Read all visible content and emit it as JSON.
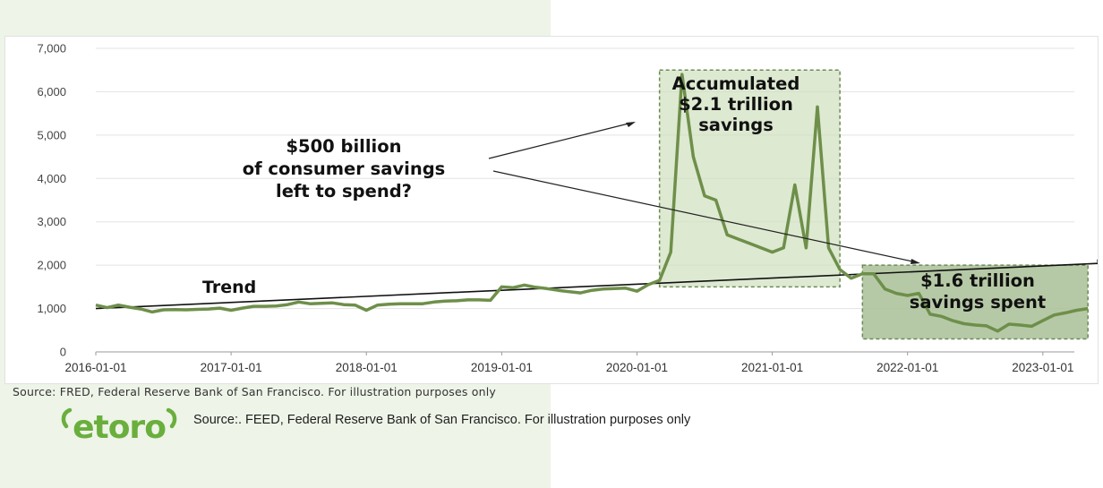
{
  "chart_data": {
    "type": "line",
    "title": "",
    "xlabel": "",
    "ylabel": "",
    "ylim": [
      0,
      7000
    ],
    "y_ticks": [
      0,
      1000,
      2000,
      3000,
      4000,
      5000,
      6000,
      7000
    ],
    "y_tick_labels": [
      "0",
      "1,000",
      "2,000",
      "3,000",
      "4,000",
      "5,000",
      "6,000",
      "7,000"
    ],
    "x_tick_labels": [
      "2016-01-01",
      "2017-01-01",
      "2018-01-01",
      "2019-01-01",
      "2020-01-01",
      "2021-01-01",
      "2022-01-01",
      "2023-01-01"
    ],
    "x_range": [
      "2016-01",
      "2023-03"
    ],
    "grid": "horizontal",
    "legend": "none",
    "series": [
      {
        "color": "#6e8f4a",
        "points": [
          [
            "2016-01",
            1080
          ],
          [
            "2016-02",
            1020
          ],
          [
            "2016-03",
            1080
          ],
          [
            "2016-04",
            1030
          ],
          [
            "2016-05",
            990
          ],
          [
            "2016-06",
            920
          ],
          [
            "2016-07",
            970
          ],
          [
            "2016-08",
            975
          ],
          [
            "2016-09",
            970
          ],
          [
            "2016-10",
            980
          ],
          [
            "2016-11",
            990
          ],
          [
            "2016-12",
            1010
          ],
          [
            "2017-01",
            960
          ],
          [
            "2017-02",
            1010
          ],
          [
            "2017-03",
            1050
          ],
          [
            "2017-04",
            1050
          ],
          [
            "2017-05",
            1060
          ],
          [
            "2017-06",
            1090
          ],
          [
            "2017-07",
            1150
          ],
          [
            "2017-08",
            1110
          ],
          [
            "2017-09",
            1120
          ],
          [
            "2017-10",
            1130
          ],
          [
            "2017-11",
            1090
          ],
          [
            "2017-12",
            1080
          ],
          [
            "2018-01",
            960
          ],
          [
            "2018-02",
            1080
          ],
          [
            "2018-03",
            1100
          ],
          [
            "2018-04",
            1110
          ],
          [
            "2018-05",
            1110
          ],
          [
            "2018-06",
            1110
          ],
          [
            "2018-07",
            1150
          ],
          [
            "2018-08",
            1170
          ],
          [
            "2018-09",
            1180
          ],
          [
            "2018-10",
            1200
          ],
          [
            "2018-11",
            1200
          ],
          [
            "2018-12",
            1190
          ],
          [
            "2019-01",
            1500
          ],
          [
            "2019-02",
            1480
          ],
          [
            "2019-03",
            1540
          ],
          [
            "2019-04",
            1490
          ],
          [
            "2019-05",
            1460
          ],
          [
            "2019-06",
            1420
          ],
          [
            "2019-07",
            1390
          ],
          [
            "2019-08",
            1360
          ],
          [
            "2019-09",
            1420
          ],
          [
            "2019-10",
            1450
          ],
          [
            "2019-11",
            1460
          ],
          [
            "2019-12",
            1470
          ],
          [
            "2020-01",
            1400
          ],
          [
            "2020-02",
            1550
          ],
          [
            "2020-03",
            1650
          ],
          [
            "2020-04",
            2300
          ],
          [
            "2020-05",
            6400
          ],
          [
            "2020-06",
            4500
          ],
          [
            "2020-07",
            3600
          ],
          [
            "2020-08",
            3500
          ],
          [
            "2020-09",
            2700
          ],
          [
            "2020-10",
            2600
          ],
          [
            "2020-11",
            2500
          ],
          [
            "2020-12",
            2400
          ],
          [
            "2021-01",
            2300
          ],
          [
            "2021-02",
            2400
          ],
          [
            "2021-03",
            3850
          ],
          [
            "2021-04",
            2400
          ],
          [
            "2021-05",
            5650
          ],
          [
            "2021-06",
            2400
          ],
          [
            "2021-07",
            1900
          ],
          [
            "2021-08",
            1700
          ],
          [
            "2021-09",
            1800
          ],
          [
            "2021-10",
            1800
          ],
          [
            "2021-11",
            1450
          ],
          [
            "2021-12",
            1350
          ],
          [
            "2022-01",
            1300
          ],
          [
            "2022-02",
            1350
          ],
          [
            "2022-03",
            870
          ],
          [
            "2022-04",
            820
          ],
          [
            "2022-05",
            720
          ],
          [
            "2022-06",
            650
          ],
          [
            "2022-07",
            620
          ],
          [
            "2022-08",
            600
          ],
          [
            "2022-09",
            480
          ],
          [
            "2022-10",
            640
          ],
          [
            "2022-11",
            620
          ],
          [
            "2022-12",
            590
          ],
          [
            "2023-01",
            720
          ],
          [
            "2023-02",
            850
          ],
          [
            "2023-03",
            900
          ],
          [
            "2023-04",
            960
          ],
          [
            "2023-05",
            1000
          ]
        ]
      }
    ],
    "trend_line": {
      "label": "Trend",
      "from": [
        "2016-01",
        1000
      ],
      "to": [
        "2023-05",
        2050
      ]
    },
    "shaded_regions": [
      {
        "label": "Accumulated $2.1 trillion savings",
        "x": [
          "2020-03",
          "2021-07"
        ],
        "y": [
          1500,
          6500
        ],
        "color": "#cfe0bd"
      },
      {
        "label": "$1.6 trillion savings spent",
        "x": [
          "2021-09",
          "2023-05"
        ],
        "y": [
          300,
          2000
        ],
        "color": "#a9bf96"
      }
    ],
    "annotations": {
      "trend": "Trend",
      "center": [
        "$500 billion",
        "of consumer savings",
        "left to spend?"
      ],
      "accumulated": [
        "Accumulated",
        "$2.1 trillion",
        "savings"
      ],
      "spent": [
        "$1.6 trillion",
        "savings spent"
      ]
    }
  },
  "sources": {
    "chart_source": "Source: FRED, Federal Reserve Bank of San Francisco. For illustration purposes only",
    "footer_source": "Source:. FEED, Federal Reserve Bank of San Francisco.  For illustration purposes only"
  },
  "brand": {
    "logo_text": "etoro",
    "color": "#6aaf3d"
  }
}
